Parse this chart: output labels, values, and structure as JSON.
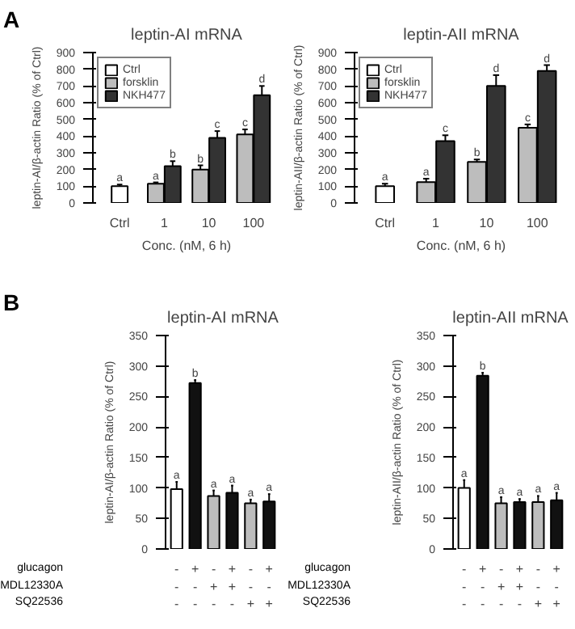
{
  "chart_data": [
    {
      "type": "bar",
      "title": "leptin-AI mRNA",
      "annotations": [
        "A"
      ],
      "xlabel": "Conc. (nM, 6 h)",
      "ylabel": "leptin-AI/β-actin Ratio (% of Ctrl)",
      "categories": [
        "Ctrl",
        "1",
        "10",
        "100"
      ],
      "legend": "top left",
      "ylim": [
        0,
        900
      ],
      "yticks": [
        0,
        100,
        200,
        300,
        400,
        500,
        600,
        700,
        800,
        900
      ],
      "grid": false,
      "series": [
        {
          "name": "Ctrl",
          "color": "#ffffff",
          "values": [
            100,
            null,
            null,
            null
          ],
          "errors": [
            10,
            null,
            null,
            null
          ],
          "value_labels": [
            "a",
            null,
            null,
            null
          ]
        },
        {
          "name": "forsklin",
          "color": "#bdbdbd",
          "values": [
            null,
            115,
            200,
            410
          ],
          "errors": [
            null,
            8,
            25,
            30
          ],
          "value_labels": [
            null,
            "a",
            "b",
            "c"
          ]
        },
        {
          "name": "NKH477",
          "color": "#333333",
          "values": [
            null,
            220,
            390,
            645
          ],
          "errors": [
            null,
            30,
            40,
            55
          ],
          "value_labels": [
            null,
            "b",
            "c",
            "d"
          ]
        }
      ]
    },
    {
      "type": "bar",
      "title": "leptin-AII mRNA",
      "xlabel": "Conc. (nM, 6 h)",
      "ylabel": "leptin-AII/β-actin Ratio (% of Ctrl)",
      "categories": [
        "Ctrl",
        "1",
        "10",
        "100"
      ],
      "legend": "top left",
      "ylim": [
        0,
        900
      ],
      "yticks": [
        0,
        100,
        200,
        300,
        400,
        500,
        600,
        700,
        800,
        900
      ],
      "grid": false,
      "series": [
        {
          "name": "Ctrl",
          "color": "#ffffff",
          "values": [
            100,
            null,
            null,
            null
          ],
          "errors": [
            15,
            null,
            null,
            null
          ],
          "value_labels": [
            "a",
            null,
            null,
            null
          ]
        },
        {
          "name": "forsklin",
          "color": "#bdbdbd",
          "values": [
            null,
            125,
            245,
            450
          ],
          "errors": [
            null,
            20,
            15,
            20
          ],
          "value_labels": [
            null,
            "a",
            "b",
            "c"
          ]
        },
        {
          "name": "NKH477",
          "color": "#333333",
          "values": [
            null,
            370,
            700,
            790
          ],
          "errors": [
            null,
            35,
            65,
            35
          ],
          "value_labels": [
            null,
            "c",
            "d",
            "d"
          ]
        }
      ]
    },
    {
      "type": "bar",
      "title": "leptin-AI mRNA",
      "annotations": [
        "B",
        "glucagon",
        "MDL12330A",
        "SQ22536"
      ],
      "ylabel": "leptin-AI/β-actin Ratio (% of Ctrl)",
      "categories": [
        "-\n-\n-",
        "+\n-\n-",
        "-\n+\n-",
        "+\n+\n-",
        "-\n-\n+",
        "+\n-\n+"
      ],
      "ylim": [
        0,
        350
      ],
      "yticks": [
        0,
        50,
        100,
        150,
        200,
        250,
        300,
        350
      ],
      "grid": false,
      "series": [
        {
          "colors": [
            "#ffffff",
            "#111111",
            "#bdbdbd",
            "#111111",
            "#bdbdbd",
            "#111111"
          ],
          "values": [
            98,
            272,
            87,
            92,
            75,
            78
          ],
          "errors": [
            12,
            5,
            9,
            12,
            6,
            12
          ],
          "value_labels": [
            "a",
            "b",
            "a",
            "a",
            "a",
            "a"
          ]
        }
      ]
    },
    {
      "type": "bar",
      "title": "leptin-AII mRNA",
      "annotations": [
        "glucagon",
        "MDL12330A",
        "SQ22536"
      ],
      "ylabel": "leptin-AII/β-actin Ratio (% of Ctrl)",
      "categories": [
        "-\n-\n-",
        "+\n-\n-",
        "-\n+\n-",
        "+\n+\n-",
        "-\n-\n+",
        "+\n-\n+"
      ],
      "ylim": [
        0,
        350
      ],
      "yticks": [
        0,
        50,
        100,
        150,
        200,
        250,
        300,
        350
      ],
      "grid": false,
      "series": [
        {
          "colors": [
            "#ffffff",
            "#111111",
            "#bdbdbd",
            "#111111",
            "#bdbdbd",
            "#111111"
          ],
          "values": [
            100,
            284,
            75,
            77,
            77,
            80
          ],
          "errors": [
            13,
            5,
            10,
            5,
            10,
            12
          ],
          "value_labels": [
            "a",
            "b",
            "a",
            "a",
            "a",
            "a"
          ]
        }
      ]
    }
  ]
}
